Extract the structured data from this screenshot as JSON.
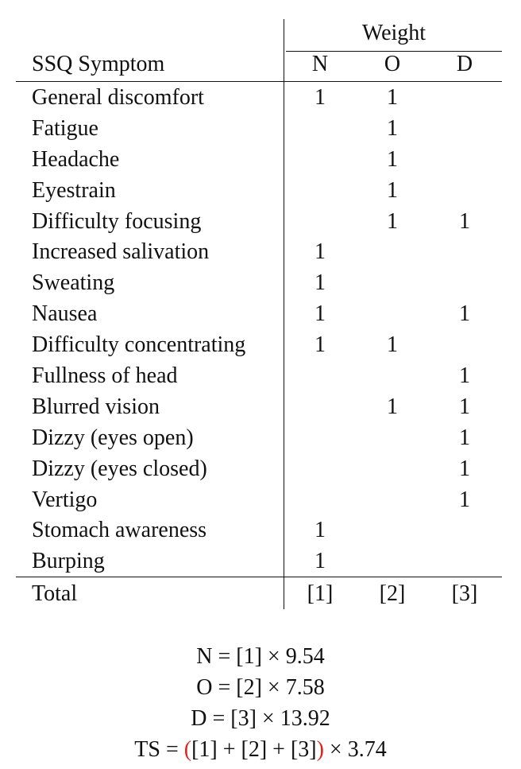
{
  "table": {
    "header": {
      "group_label": "Weight",
      "symptom_label": "SSQ Symptom",
      "columns": [
        "N",
        "O",
        "D"
      ]
    },
    "rows": [
      {
        "symptom": "General discomfort",
        "N": "1",
        "O": "1",
        "D": ""
      },
      {
        "symptom": "Fatigue",
        "N": "",
        "O": "1",
        "D": ""
      },
      {
        "symptom": "Headache",
        "N": "",
        "O": "1",
        "D": ""
      },
      {
        "symptom": "Eyestrain",
        "N": "",
        "O": "1",
        "D": ""
      },
      {
        "symptom": "Difficulty focusing",
        "N": "",
        "O": "1",
        "D": "1"
      },
      {
        "symptom": "Increased salivation",
        "N": "1",
        "O": "",
        "D": ""
      },
      {
        "symptom": "Sweating",
        "N": "1",
        "O": "",
        "D": ""
      },
      {
        "symptom": "Nausea",
        "N": "1",
        "O": "",
        "D": "1"
      },
      {
        "symptom": "Difficulty concentrating",
        "N": "1",
        "O": "1",
        "D": ""
      },
      {
        "symptom": "Fullness of head",
        "N": "",
        "O": "",
        "D": "1"
      },
      {
        "symptom": "Blurred vision",
        "N": "",
        "O": "1",
        "D": "1"
      },
      {
        "symptom": "Dizzy (eyes open)",
        "N": "",
        "O": "",
        "D": "1"
      },
      {
        "symptom": "Dizzy (eyes closed)",
        "N": "",
        "O": "",
        "D": "1"
      },
      {
        "symptom": "Vertigo",
        "N": "",
        "O": "",
        "D": "1"
      },
      {
        "symptom": "Stomach awareness",
        "N": "1",
        "O": "",
        "D": ""
      },
      {
        "symptom": "Burping",
        "N": "1",
        "O": "",
        "D": ""
      }
    ],
    "total": {
      "label": "Total",
      "N": "[1]",
      "O": "[2]",
      "D": "[3]"
    }
  },
  "formulas": {
    "n": "N = [1] × 9.54",
    "o": "O = [2] × 7.58",
    "d": "D = [3] × 13.92",
    "ts": {
      "prefix": "TS = ",
      "open_paren": "(",
      "inner": "[1] + [2] + [3]",
      "close_paren": ")",
      "suffix": " × 3.74"
    }
  },
  "colors": {
    "text": "#111111",
    "paren_highlight": "#e0241b"
  }
}
